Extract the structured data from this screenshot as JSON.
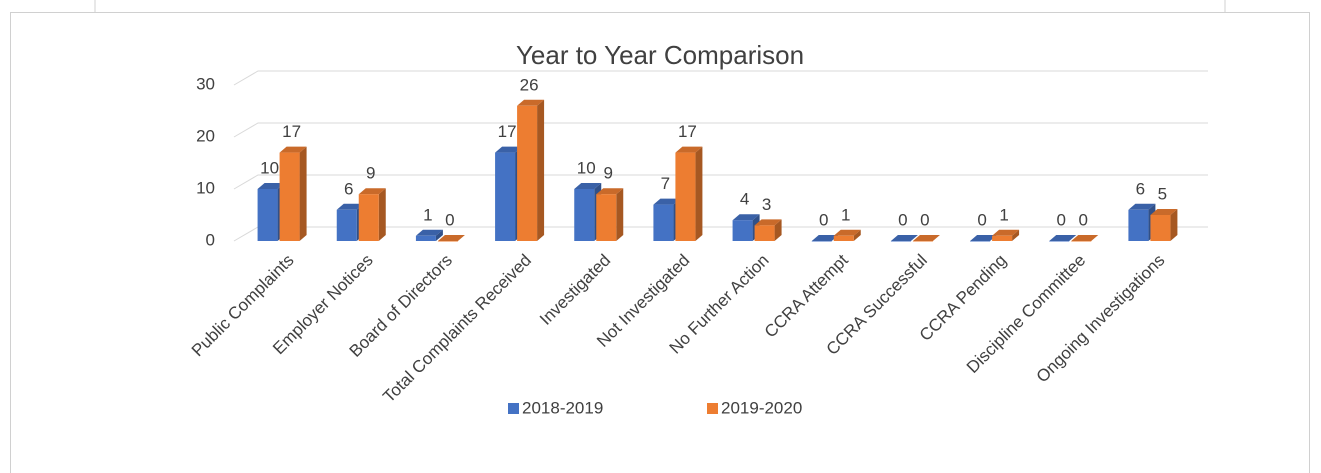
{
  "chart_data": {
    "type": "bar3d",
    "title": "Year to Year Comparison",
    "categories": [
      "Public Complaints",
      "Employer Notices",
      "Board of Directors",
      "Total Complaints Received",
      "Investigated",
      "Not Investigated",
      "No Further Action",
      "CCRA Attempt",
      "CCRA Successful",
      "CCRA Pending",
      "Discipline Committee",
      "Ongoing Investigations"
    ],
    "series": [
      {
        "name": "2018-2019",
        "color": "#4472c4",
        "values": [
          10,
          6,
          1,
          17,
          10,
          7,
          4,
          0,
          0,
          0,
          0,
          6
        ]
      },
      {
        "name": "2019-2020",
        "color": "#ed7d31",
        "values": [
          17,
          9,
          0,
          26,
          9,
          17,
          3,
          1,
          0,
          1,
          0,
          5
        ]
      }
    ],
    "ylim": [
      0,
      30
    ],
    "yticks": [
      0,
      10,
      20,
      30
    ],
    "grid": true,
    "legend": "bottom"
  }
}
